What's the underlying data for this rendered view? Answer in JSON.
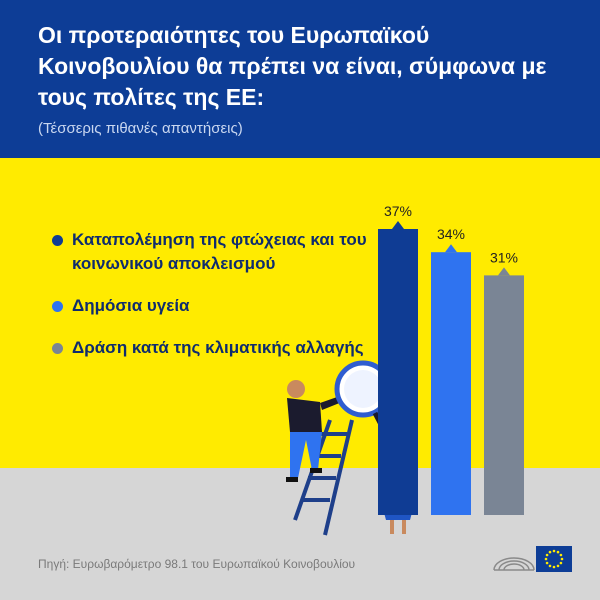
{
  "header": {
    "title": "Οι προτεραιότητες του Ευρωπαϊκού Κοινοβουλίου θα πρέπει να είναι, σύμφωνα με τους πολίτες της ΕΕ:",
    "subtitle": "(Τέσσερις πιθανές απαντήσεις)"
  },
  "source": "Πηγή: Ευρωβαρόμετρο 98.1 του Ευρωπαϊκού Κοινοβουλίου",
  "colors": {
    "header_bg": "#0d3d96",
    "yellow_bg": "#ffeb00",
    "ground_bg": "#d6d6d6",
    "series_1": "#0f3c94",
    "series_2": "#2f73f0",
    "series_3": "#7a8595"
  },
  "chart_data": {
    "type": "bar",
    "categories": [
      "Καταπολέμηση της φτώχειας και του κοινωνικού αποκλεισμού",
      "Δημόσια υγεία",
      "Δράση κατά της κλιματικής αλλαγής"
    ],
    "values": [
      37,
      34,
      31
    ],
    "value_labels": [
      "37%",
      "34%",
      "31%"
    ],
    "colors": [
      "#0f3c94",
      "#2f73f0",
      "#7a8595"
    ],
    "ylim": [
      0,
      37
    ],
    "grid": false,
    "legend": "left"
  }
}
